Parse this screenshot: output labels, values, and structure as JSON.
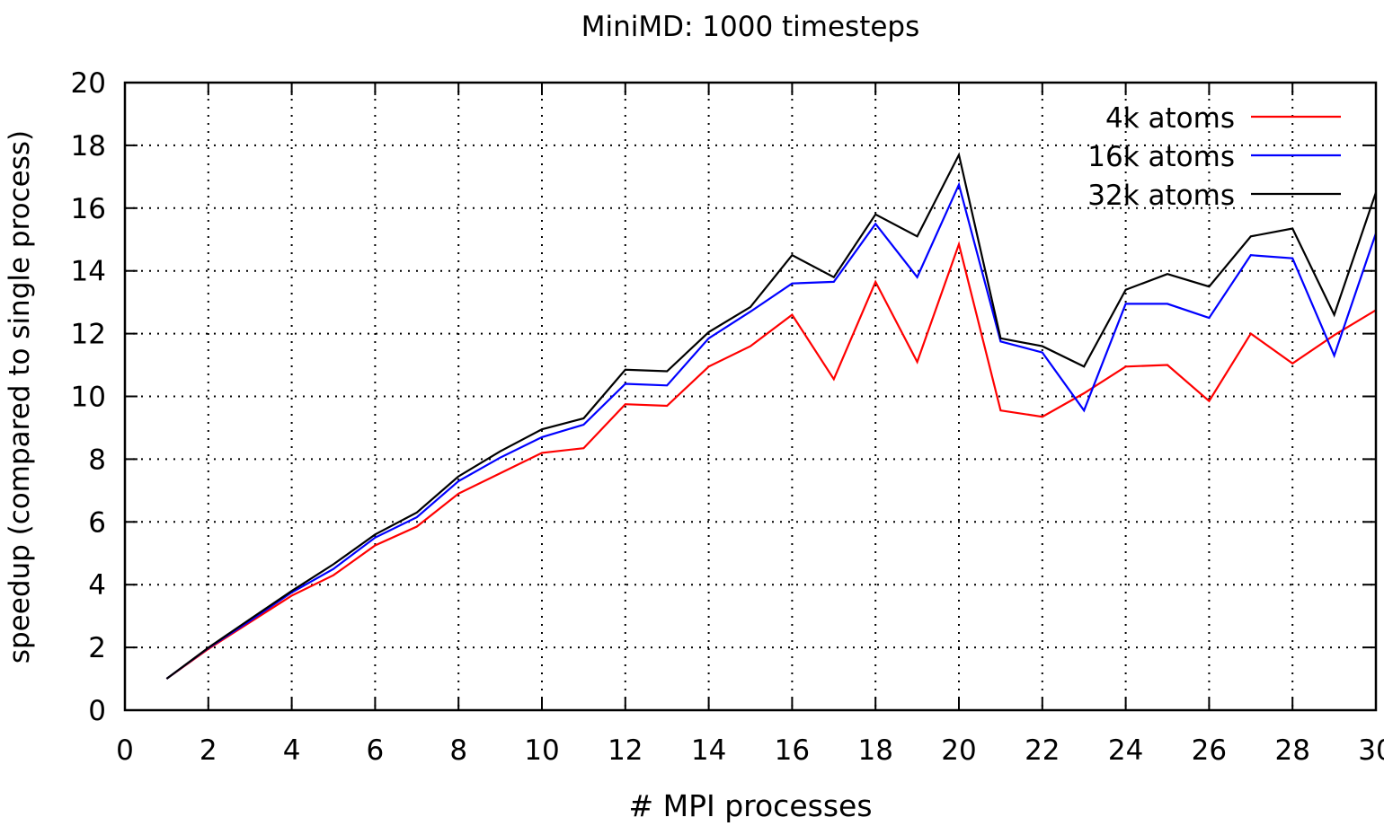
{
  "chart_data": {
    "type": "line",
    "title": "MiniMD: 1000 timesteps",
    "xlabel": "# MPI processes",
    "ylabel": "speedup (compared to single process)",
    "xlim": [
      0,
      30
    ],
    "ylim": [
      0,
      20
    ],
    "xticks": [
      0,
      2,
      4,
      6,
      8,
      10,
      12,
      14,
      16,
      18,
      20,
      22,
      24,
      26,
      28,
      30
    ],
    "yticks": [
      0,
      2,
      4,
      6,
      8,
      10,
      12,
      14,
      16,
      18,
      20
    ],
    "grid": true,
    "legend_position": "top-right",
    "x": [
      1,
      2,
      3,
      4,
      5,
      6,
      7,
      8,
      9,
      10,
      11,
      12,
      13,
      14,
      15,
      16,
      17,
      18,
      19,
      20,
      21,
      22,
      23,
      24,
      25,
      26,
      27,
      28,
      29,
      30
    ],
    "series": [
      {
        "name": "4k atoms",
        "color": "#ff0000",
        "values": [
          1.0,
          1.95,
          2.8,
          3.65,
          4.3,
          5.25,
          5.85,
          6.9,
          7.55,
          8.2,
          8.35,
          9.75,
          9.7,
          10.95,
          11.6,
          12.6,
          10.55,
          13.65,
          11.1,
          14.85,
          9.55,
          9.35,
          10.1,
          10.95,
          11.0,
          9.85,
          12.0,
          11.05,
          11.95,
          12.75
        ]
      },
      {
        "name": "16k atoms",
        "color": "#0000ff",
        "values": [
          1.0,
          1.98,
          2.85,
          3.75,
          4.5,
          5.5,
          6.15,
          7.3,
          8.05,
          8.7,
          9.1,
          10.4,
          10.35,
          11.85,
          12.7,
          13.6,
          13.65,
          15.5,
          13.8,
          16.75,
          11.75,
          11.4,
          9.55,
          12.95,
          12.95,
          12.5,
          14.5,
          14.4,
          11.3,
          15.2
        ]
      },
      {
        "name": "32k atoms",
        "color": "#000000",
        "values": [
          1.0,
          1.99,
          2.9,
          3.8,
          4.65,
          5.6,
          6.3,
          7.45,
          8.25,
          8.95,
          9.3,
          10.85,
          10.8,
          12.05,
          12.85,
          14.5,
          13.8,
          15.8,
          15.1,
          17.7,
          11.85,
          11.6,
          10.95,
          13.4,
          13.9,
          13.5,
          15.1,
          15.35,
          12.6,
          16.5
        ]
      }
    ]
  }
}
